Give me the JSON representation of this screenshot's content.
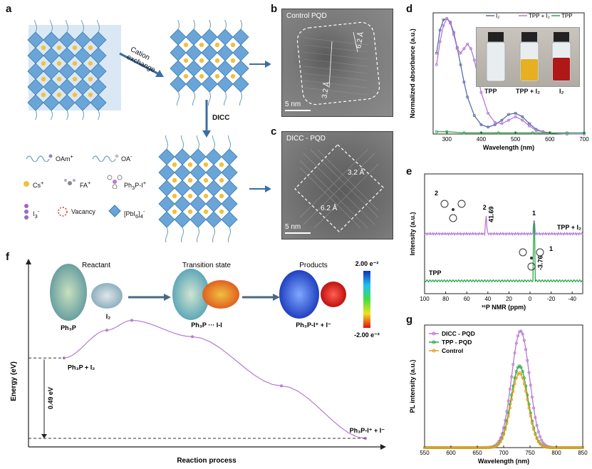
{
  "panels": {
    "a": {
      "letter": "a",
      "arrow_label_1": "Cation",
      "arrow_label_2": "exchange",
      "dicc_label": "DICC",
      "legend": {
        "oam": "OAm",
        "oam_sup": "+",
        "oa": "OA",
        "oa_sup": "-",
        "cs": "Cs",
        "cs_sup": "+",
        "fa": "FA",
        "fa_sup": "+",
        "ph3pi": "Ph",
        "ph3pi_sub": "3",
        "ph3pi_rest": "P-I",
        "ph3pi_sup": "+",
        "i3": "I",
        "i3_sub": "3",
        "i3_sup": "-",
        "vacancy": "Vacancy",
        "pbi6": "[PbI",
        "pbi6_sub": "6",
        "pbi6_rest": "]",
        "pbi6_sub2": "4",
        "pbi6_sup": "-"
      }
    },
    "b": {
      "letter": "b",
      "title": "Control PQD",
      "d1": "6.2 Å",
      "d2": "3.2 Å",
      "scale": "5 nm"
    },
    "c": {
      "letter": "c",
      "title": "DICC - PQD",
      "d1": "3.2 Å",
      "d2": "6.2 Å",
      "scale": "5 nm"
    },
    "d": {
      "letter": "d",
      "legend": [
        "I₂",
        "TPP + I₂",
        "TPP"
      ],
      "vial_labels": [
        "TPP",
        "TPP + I₂",
        "I₂"
      ],
      "xlabel": "Wavelength (nm)",
      "ylabel": "Normalized absorbance (a.u.)",
      "xticks": [
        "300",
        "400",
        "500",
        "600",
        "700"
      ]
    },
    "e": {
      "letter": "e",
      "peak1": "1",
      "peak2": "2",
      "value_1": "41.69",
      "value_2": "-3.76",
      "label_1": "2",
      "label_2": "1",
      "trace_top": "TPP + I₂",
      "trace_bottom": "TPP",
      "xlabel": "³¹P NMR (ppm)",
      "ylabel": "Intensity (a.u.)",
      "xticks": [
        "100",
        "80",
        "60",
        "40",
        "20",
        "0",
        "-20",
        "-40"
      ]
    },
    "f": {
      "letter": "f",
      "stage_titles": [
        "Reactant",
        "Transition state",
        "Products"
      ],
      "species": [
        "Ph₃P",
        "I₂",
        "Ph₃P ··· I-I",
        "Ph₃P-I⁺ + I⁻"
      ],
      "colorbar_max": "2.00 e⁻²",
      "colorbar_min": "-2.00 e⁻²",
      "start_label": "Ph₃P + I₂",
      "end_label": "Ph₃P-I⁺ + I⁻",
      "energy_diff": "0.49 eV",
      "xlabel": "Reaction process",
      "ylabel": "Energy (eV)"
    },
    "g": {
      "letter": "g",
      "legend": [
        "DICC - PQD",
        "TPP - PQD",
        "Control"
      ],
      "xlabel": "Wavelength (nm)",
      "ylabel": "PL intensity (a.u.)",
      "xticks": [
        "550",
        "600",
        "650",
        "700",
        "750",
        "800",
        "850"
      ]
    }
  },
  "chart_data": [
    {
      "panel": "d",
      "type": "line",
      "xlim": [
        260,
        700
      ],
      "ylim": [
        0,
        1.05
      ],
      "series": [
        {
          "name": "I₂",
          "color": "#5b6ea8",
          "x": [
            270,
            280,
            290,
            300,
            310,
            320,
            330,
            340,
            350,
            360,
            380,
            400,
            420,
            440,
            460,
            480,
            500,
            520,
            540,
            560,
            580,
            600,
            650,
            700
          ],
          "y": [
            0.7,
            0.9,
            0.99,
            1.0,
            0.97,
            0.88,
            0.75,
            0.6,
            0.45,
            0.32,
            0.16,
            0.08,
            0.06,
            0.08,
            0.12,
            0.17,
            0.18,
            0.15,
            0.09,
            0.04,
            0.02,
            0.01,
            0.0,
            0.0
          ]
        },
        {
          "name": "TPP + I₂",
          "color": "#b57ad6",
          "x": [
            270,
            280,
            290,
            300,
            310,
            320,
            330,
            340,
            350,
            360,
            370,
            380,
            390,
            400,
            420,
            440,
            460,
            480,
            500,
            520,
            540,
            560,
            600,
            650,
            700
          ],
          "y": [
            0.6,
            0.8,
            0.94,
            1.0,
            0.96,
            0.86,
            0.74,
            0.7,
            0.74,
            0.78,
            0.74,
            0.64,
            0.5,
            0.36,
            0.18,
            0.1,
            0.09,
            0.12,
            0.15,
            0.12,
            0.07,
            0.03,
            0.01,
            0.0,
            0.0
          ]
        },
        {
          "name": "TPP",
          "color": "#2aa84a",
          "x": [
            270,
            300,
            350,
            400,
            450,
            500,
            550,
            600,
            650,
            700
          ],
          "y": [
            0.02,
            0.02,
            0.01,
            0.01,
            0.01,
            0.01,
            0.01,
            0.01,
            0.01,
            0.01
          ]
        }
      ]
    },
    {
      "panel": "e",
      "type": "line",
      "xlim": [
        100,
        -50
      ],
      "series": [
        {
          "name": "TPP + I₂",
          "color": "#b57ad6",
          "peaks": [
            41.69,
            -3.76
          ]
        },
        {
          "name": "TPP",
          "color": "#2aa84a",
          "peaks": [
            -3.76
          ]
        }
      ]
    },
    {
      "panel": "f",
      "type": "line",
      "series": [
        {
          "name": "",
          "color": "#b57ad6",
          "x": [
            0,
            1,
            2,
            3,
            4,
            5
          ],
          "y": [
            0.49,
            0.66,
            0.72,
            0.62,
            0.32,
            0.0
          ]
        }
      ]
    },
    {
      "panel": "g",
      "type": "line",
      "xlim": [
        550,
        850
      ],
      "ylim": [
        0,
        1.05
      ],
      "series": [
        {
          "name": "DICC - PQD",
          "color": "#b57ad6",
          "center": 732,
          "peak": 1.0,
          "sigma": 17
        },
        {
          "name": "TPP - PQD",
          "color": "#2aa84a",
          "center": 730,
          "peak": 0.7,
          "sigma": 16
        },
        {
          "name": "Control",
          "color": "#e0a020",
          "center": 730,
          "peak": 0.64,
          "sigma": 16
        }
      ]
    }
  ]
}
